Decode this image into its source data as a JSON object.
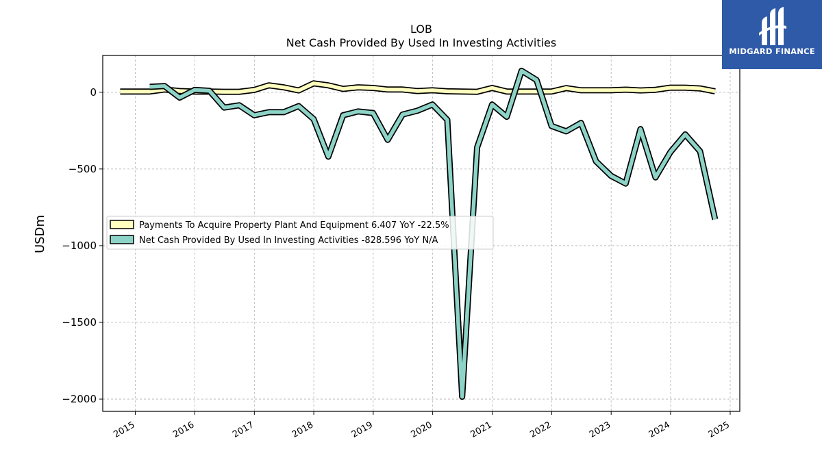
{
  "brand": {
    "name": "MIDGARD FINANCE",
    "bg_color": "#2f5aa8"
  },
  "chart_data": {
    "type": "line",
    "title": "LOB",
    "subtitle": "Net Cash Provided By Used In Investing Activities",
    "ylabel": "USDm",
    "xlabel": "",
    "ylim": [
      -2080,
      240
    ],
    "xlim": [
      "2014-06-15",
      "2025-03-01"
    ],
    "yticks": [
      0,
      -500,
      -1000,
      -1500,
      -2000
    ],
    "ytick_labels": [
      "0",
      "−500",
      "−1000",
      "−1500",
      "−2000"
    ],
    "xticks": [
      "2015",
      "2016",
      "2017",
      "2018",
      "2019",
      "2020",
      "2021",
      "2022",
      "2023",
      "2024",
      "2025"
    ],
    "grid": true,
    "legend_position": "center-left",
    "series": [
      {
        "name": "Payments To Acquire Property Plant And Equipment",
        "legend_label": "Payments To Acquire Property Plant And Equipment  6.407 YoY -22.5%",
        "color": "#ffffbf",
        "points": [
          [
            "2014-09-30",
            5
          ],
          [
            "2014-12-31",
            5
          ],
          [
            "2015-03-31",
            5
          ],
          [
            "2015-06-30",
            18
          ],
          [
            "2015-09-30",
            8
          ],
          [
            "2015-12-31",
            4
          ],
          [
            "2016-03-31",
            5
          ],
          [
            "2016-06-30",
            3
          ],
          [
            "2016-09-30",
            3
          ],
          [
            "2016-12-31",
            15
          ],
          [
            "2017-03-31",
            45
          ],
          [
            "2017-06-30",
            32
          ],
          [
            "2017-09-30",
            12
          ],
          [
            "2017-12-31",
            58
          ],
          [
            "2018-03-31",
            45
          ],
          [
            "2018-06-30",
            22
          ],
          [
            "2018-09-30",
            32
          ],
          [
            "2018-12-31",
            28
          ],
          [
            "2019-03-31",
            18
          ],
          [
            "2019-06-30",
            18
          ],
          [
            "2019-09-30",
            8
          ],
          [
            "2019-12-31",
            13
          ],
          [
            "2020-03-31",
            6
          ],
          [
            "2020-06-30",
            5
          ],
          [
            "2020-09-30",
            3
          ],
          [
            "2020-12-31",
            28
          ],
          [
            "2021-03-31",
            5
          ],
          [
            "2021-06-30",
            5
          ],
          [
            "2021-09-30",
            5
          ],
          [
            "2021-12-31",
            5
          ],
          [
            "2022-03-31",
            27
          ],
          [
            "2022-06-30",
            13
          ],
          [
            "2022-09-30",
            13
          ],
          [
            "2022-12-31",
            13
          ],
          [
            "2023-03-31",
            17
          ],
          [
            "2023-06-30",
            12
          ],
          [
            "2023-09-30",
            16
          ],
          [
            "2023-12-31",
            30
          ],
          [
            "2024-03-31",
            30
          ],
          [
            "2024-06-30",
            25
          ],
          [
            "2024-09-30",
            6.407
          ]
        ]
      },
      {
        "name": "Net Cash Provided By Used In Investing Activities",
        "legend_label": "Net Cash Provided By Used In Investing Activities  -828.596 YoY N/A",
        "color": "#8dd3c7",
        "points": [
          [
            "2015-03-31",
            35
          ],
          [
            "2015-06-30",
            40
          ],
          [
            "2015-09-30",
            -35
          ],
          [
            "2015-12-31",
            15
          ],
          [
            "2016-03-31",
            10
          ],
          [
            "2016-06-30",
            -100
          ],
          [
            "2016-09-30",
            -85
          ],
          [
            "2016-12-31",
            -150
          ],
          [
            "2017-03-31",
            -130
          ],
          [
            "2017-06-30",
            -130
          ],
          [
            "2017-09-30",
            -90
          ],
          [
            "2017-12-31",
            -175
          ],
          [
            "2018-03-31",
            -420
          ],
          [
            "2018-06-30",
            -150
          ],
          [
            "2018-09-30",
            -125
          ],
          [
            "2018-12-31",
            -135
          ],
          [
            "2019-03-31",
            -310
          ],
          [
            "2019-06-30",
            -145
          ],
          [
            "2019-09-30",
            -120
          ],
          [
            "2019-12-31",
            -80
          ],
          [
            "2020-03-31",
            -180
          ],
          [
            "2020-06-30",
            -1985
          ],
          [
            "2020-09-30",
            -360
          ],
          [
            "2020-12-31",
            -80
          ],
          [
            "2021-03-31",
            -160
          ],
          [
            "2021-06-30",
            140
          ],
          [
            "2021-09-30",
            80
          ],
          [
            "2021-12-31",
            -220
          ],
          [
            "2022-03-31",
            -255
          ],
          [
            "2022-06-30",
            -200
          ],
          [
            "2022-09-30",
            -450
          ],
          [
            "2022-12-31",
            -545
          ],
          [
            "2023-03-31",
            -595
          ],
          [
            "2023-06-30",
            -240
          ],
          [
            "2023-09-30",
            -555
          ],
          [
            "2023-12-31",
            -390
          ],
          [
            "2024-03-31",
            -275
          ],
          [
            "2024-06-30",
            -385
          ],
          [
            "2024-09-30",
            -828.596
          ]
        ]
      }
    ]
  }
}
